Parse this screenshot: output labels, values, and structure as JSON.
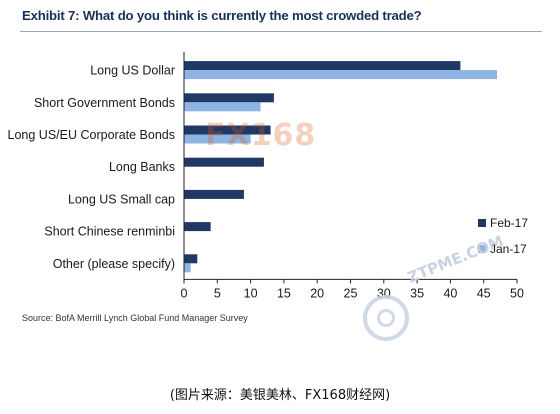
{
  "header": {
    "title": "Exhibit 7: What do you think is currently the most crowded trade?"
  },
  "source": "Source: BofA Merrill Lynch Global Fund Manager Survey",
  "caption": "(图片来源：美银美林、FX168财经网)",
  "watermarks": {
    "logo": "FX168",
    "badge_text": "ZTPME.COM"
  },
  "colors": {
    "feb": "#1f3864",
    "jan": "#8db4e2"
  },
  "chart_data": {
    "type": "bar",
    "orientation": "horizontal",
    "title": "Exhibit 7: What do you think is currently the most crowded trade?",
    "xlabel": "",
    "ylabel": "",
    "categories": [
      "Long US Dollar",
      "Short Government Bonds",
      "Long US/EU Corporate Bonds",
      "Long Banks",
      "Long US Small cap",
      "Short Chinese renminbi",
      "Other (please specify)"
    ],
    "series": [
      {
        "name": "Feb-17",
        "values": [
          41.5,
          13.5,
          13,
          12,
          9,
          4,
          2
        ]
      },
      {
        "name": "Jan-17",
        "values": [
          47,
          11.5,
          10,
          null,
          null,
          null,
          1
        ]
      }
    ],
    "xlim": [
      0,
      50
    ],
    "xticks": [
      0,
      5,
      10,
      15,
      20,
      25,
      30,
      35,
      40,
      45,
      50
    ],
    "grid": false,
    "legend_position": "bottom-right"
  }
}
